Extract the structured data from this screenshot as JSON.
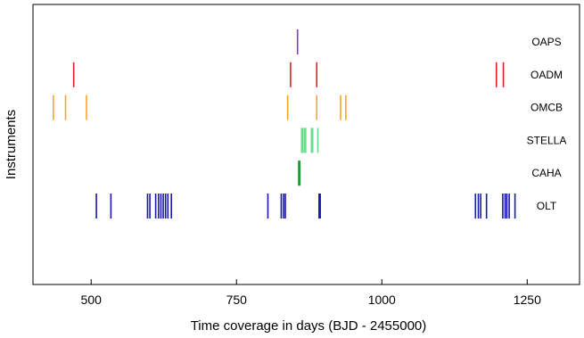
{
  "chart_data": {
    "type": "timeline",
    "xlabel": "Time coverage in days (BJD - 2455000)",
    "ylabel": "Instruments",
    "xlim": [
      400,
      1340
    ],
    "xticks": [
      500,
      750,
      1000,
      1250
    ],
    "xtick_labels": [
      "500",
      "750",
      "1000",
      "1250"
    ],
    "grid": false,
    "series": [
      {
        "name": "OAPS",
        "color": "#7b3fc4",
        "dates": [
          855
        ]
      },
      {
        "name": "OADM",
        "color": "#e02020",
        "dates": [
          470,
          843,
          888,
          1197,
          1209
        ]
      },
      {
        "name": "OMCB",
        "color": "#f5a623",
        "dates": [
          435,
          456,
          492,
          838,
          888,
          929,
          938
        ]
      },
      {
        "name": "STELLA",
        "color": "#66dd88",
        "dates": [
          862,
          864,
          867,
          869,
          879,
          881,
          890
        ]
      },
      {
        "name": "CAHA",
        "color": "#1a9a2a",
        "dates": [
          857,
          858,
          859
        ]
      },
      {
        "name": "OLT",
        "color": "#1a1aaa",
        "dates": [
          509,
          534,
          597,
          601,
          611,
          616,
          620,
          624,
          628,
          632,
          638,
          804,
          827,
          831,
          834,
          892,
          894,
          1161,
          1166,
          1170,
          1180,
          1208,
          1212,
          1215,
          1219,
          1229
        ]
      }
    ]
  }
}
